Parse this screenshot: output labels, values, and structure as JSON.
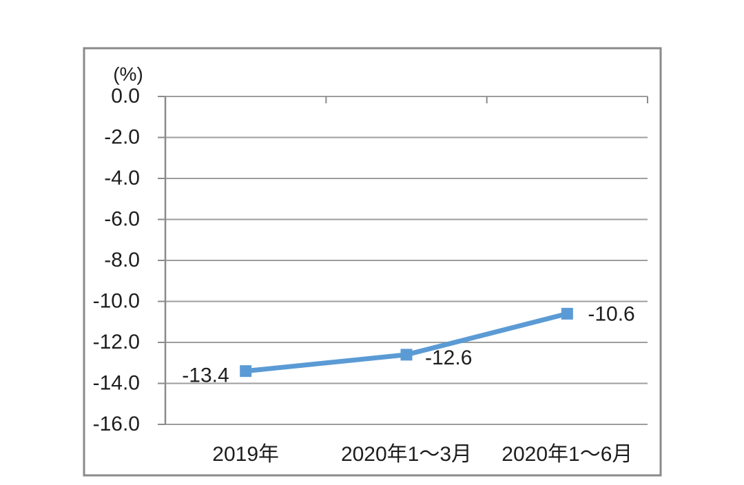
{
  "chart_data": {
    "type": "line",
    "title": "",
    "unit_label": "(%)",
    "categories": [
      "2019年",
      "2020年1～3月",
      "2020年1～6月"
    ],
    "series": [
      {
        "name": "",
        "values": [
          -13.4,
          -12.6,
          -10.6
        ]
      }
    ],
    "data_labels": [
      "-13.4",
      "-12.6",
      "-10.6"
    ],
    "xlabel": "",
    "ylabel": "(%)",
    "ylim": [
      -16,
      0
    ],
    "ytick_step": 2,
    "ytick_labels": [
      "0.0",
      "-2.0",
      "-4.0",
      "-6.0",
      "-8.0",
      "-10.0",
      "-12.0",
      "-14.0",
      "-16.0"
    ],
    "grid": true,
    "legend_position": "none",
    "marker_shape": "square",
    "colors": {
      "series_line": "#5b9bd5",
      "marker_fill": "#5b9bd5",
      "gridline": "#9d9d9d",
      "axis_line": "#8a8a8a",
      "chart_border": "#8a8a8a",
      "text": "#1d1d1d",
      "background": "#ffffff"
    }
  }
}
